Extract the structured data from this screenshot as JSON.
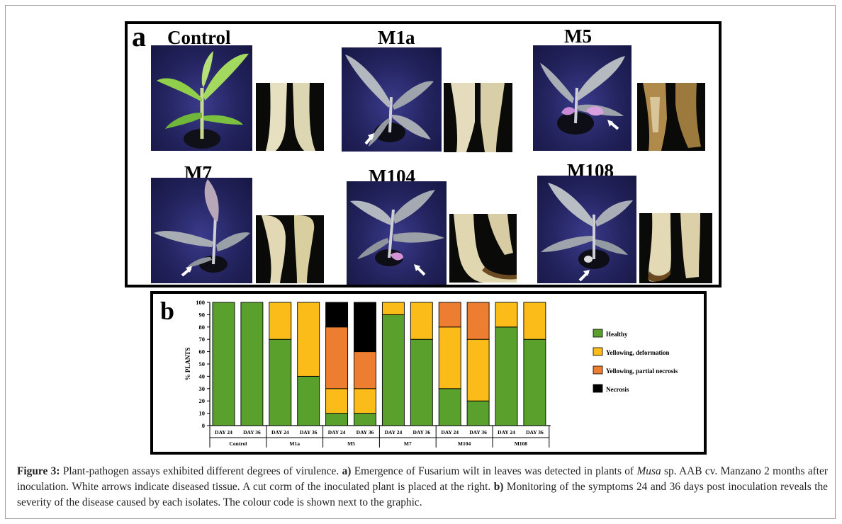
{
  "panel_a": {
    "letter": "a",
    "plants": [
      {
        "label": "Control",
        "arrow": false,
        "diseased": false
      },
      {
        "label": "M1a",
        "arrow": true,
        "diseased": true
      },
      {
        "label": "M5",
        "arrow": true,
        "diseased": true
      },
      {
        "label": "M7",
        "arrow": true,
        "diseased": true
      },
      {
        "label": "M104",
        "arrow": true,
        "diseased": true
      },
      {
        "label": "M108",
        "arrow": true,
        "diseased": true
      }
    ]
  },
  "panel_b": {
    "letter": "b"
  },
  "chart_data": {
    "type": "bar",
    "stacked": true,
    "ylabel": "% PLANTS",
    "ylim": [
      0,
      100
    ],
    "yticks": [
      0,
      10,
      20,
      30,
      40,
      50,
      60,
      70,
      80,
      90,
      100
    ],
    "categories": [
      "DAY 24",
      "DAY 36",
      "DAY 24",
      "DAY 36",
      "DAY 24",
      "DAY 36",
      "DAY 24",
      "DAY 36",
      "DAY 24",
      "DAY 36",
      "DAY 24",
      "DAY 36"
    ],
    "groups": [
      "Control",
      "M1a",
      "M5",
      "M7",
      "M104",
      "M108"
    ],
    "series": [
      {
        "name": "Healthy",
        "color": "#5aa02c",
        "values": [
          100,
          100,
          70,
          40,
          10,
          10,
          90,
          70,
          30,
          20,
          80,
          70
        ]
      },
      {
        "name": "Yellowing, deformation",
        "color": "#fbbc1a",
        "values": [
          0,
          0,
          30,
          60,
          20,
          20,
          10,
          30,
          50,
          50,
          20,
          30
        ]
      },
      {
        "name": "Yellowing, partial necrosis",
        "color": "#ed7d31",
        "values": [
          0,
          0,
          0,
          0,
          50,
          30,
          0,
          0,
          20,
          30,
          0,
          0
        ]
      },
      {
        "name": "Necrosis",
        "color": "#000000",
        "values": [
          0,
          0,
          0,
          0,
          20,
          40,
          0,
          0,
          0,
          0,
          0,
          0
        ]
      }
    ],
    "legend_position": "right",
    "grid": false
  },
  "caption": {
    "fig_label": "Figure 3:",
    "t1": " Plant-pathogen assays exhibited different degrees of virulence. ",
    "a_label": "a)",
    "t2": " Emergence of Fusarium wilt in leaves was detected in plants of ",
    "musa": "Musa",
    "t3": " sp. AAB cv. Manzano 2 months after inoculation. White arrows indicate diseased tissue. A cut corm of the inoculated plant is placed at the right. ",
    "b_label": "b)",
    "t4": " Monitoring of the symptoms 24 and 36 days post inoculation reveals the severity of the disease caused by each isolates. The colour code is shown next to the graphic."
  }
}
